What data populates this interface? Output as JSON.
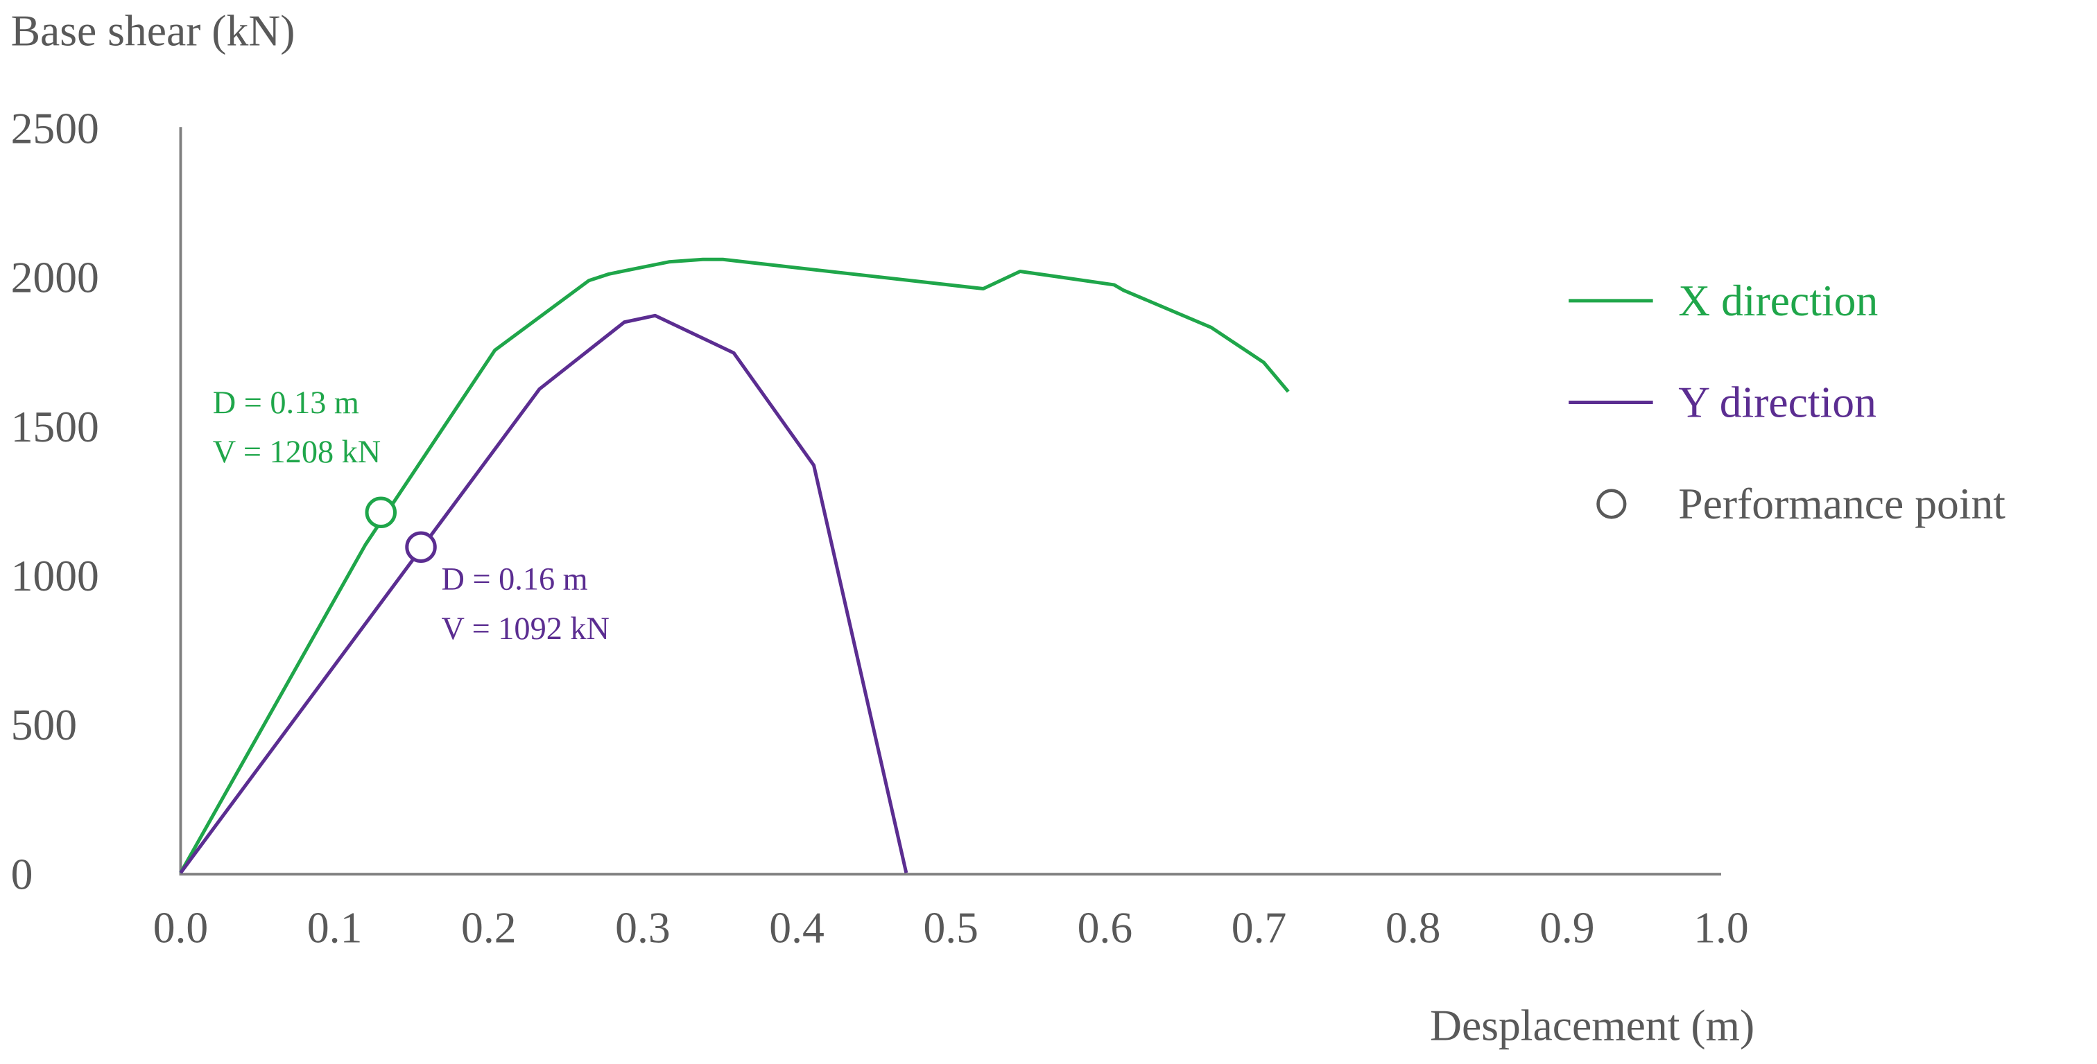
{
  "chart_data": {
    "type": "line",
    "title": "",
    "ylabel": "Base shear (kN)",
    "xlabel": "Desplacement (m)",
    "xlim": [
      0,
      1.0
    ],
    "ylim": [
      0,
      2500
    ],
    "x_ticks": [
      "0.0",
      "0.1",
      "0.2",
      "0.3",
      "0.4",
      "0.5",
      "0.6",
      "0.7",
      "0.8",
      "0.9",
      "1.0"
    ],
    "y_ticks": [
      "0",
      "500",
      "1000",
      "1500",
      "2000",
      "2500"
    ],
    "grid": false,
    "legend_position": "right",
    "series": [
      {
        "name": "X direction",
        "color": "#1fa64a",
        "x": [
          0,
          0.12,
          0.204,
          0.265,
          0.278,
          0.317,
          0.339,
          0.352,
          0.521,
          0.545,
          0.606,
          0.612,
          0.669,
          0.703,
          0.719
        ],
        "y": [
          0,
          1100,
          1752,
          1985,
          2007,
          2048,
          2056,
          2056,
          1958,
          2016,
          1971,
          1953,
          1828,
          1711,
          1613
        ]
      },
      {
        "name": "Y direction",
        "color": "#5b2d91",
        "x": [
          0,
          0.233,
          0.288,
          0.308,
          0.359,
          0.411,
          0.471
        ],
        "y": [
          0,
          1622,
          1846,
          1868,
          1743,
          1366,
          0
        ]
      }
    ],
    "performance_points": [
      {
        "series": "X direction",
        "x": 0.13,
        "y": 1208,
        "label_d": "D = 0.13 m",
        "label_v": "V = 1208 kN",
        "color": "#1fa64a"
      },
      {
        "series": "Y direction",
        "x": 0.156,
        "y": 1092,
        "label_d": "D = 0.16 m",
        "label_v": "V = 1092 kN",
        "color": "#5b2d91"
      }
    ],
    "legend": {
      "items": [
        "X direction",
        "Y direction",
        "Performance point"
      ],
      "marker_color": "#595959"
    }
  }
}
